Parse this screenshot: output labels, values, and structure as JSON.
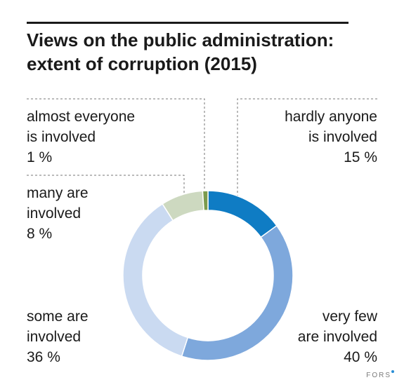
{
  "title_lines": [
    "Views on the public administration:",
    "extent of corruption (2015)"
  ],
  "brand": "FORS",
  "colors": {
    "hardly_anyone": "#0f7cc4",
    "very_few": "#7ea8dc",
    "some": "#cadaf1",
    "many": "#cdd9c0",
    "almost_everyone": "#7b9b4e",
    "leader": "#777777",
    "brand_dot": "#2a8fd6"
  },
  "chart_data": {
    "type": "pie",
    "donut": true,
    "title": "Views on the public administration: extent of corruption (2015)",
    "categories": [
      "hardly anyone is involved",
      "very few are involved",
      "some are involved",
      "many are involved",
      "almost everyone is involved"
    ],
    "values": [
      15,
      40,
      36,
      8,
      1
    ],
    "unit": "%",
    "labels": {
      "almost_everyone": {
        "lines": [
          "almost everyone",
          "is involved"
        ],
        "value": "1 %"
      },
      "hardly_anyone": {
        "lines": [
          "hardly anyone",
          "is involved"
        ],
        "value": "15 %"
      },
      "many": {
        "lines": [
          "many are",
          "involved"
        ],
        "value": "8 %"
      },
      "some": {
        "lines": [
          "some are",
          "involved"
        ],
        "value": "36 %"
      },
      "very_few": {
        "lines": [
          "very few",
          "are involved"
        ],
        "value": "40 %"
      }
    }
  }
}
